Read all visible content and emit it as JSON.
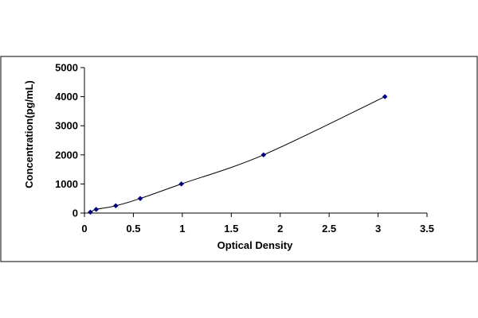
{
  "chart_data": {
    "type": "scatter",
    "title": "",
    "xlabel": "Optical Density",
    "ylabel": "Concentration(pg/mL)",
    "xlim": [
      0,
      3.5
    ],
    "ylim": [
      0,
      5000
    ],
    "x_ticks": [
      0,
      0.5,
      1,
      1.5,
      2,
      2.5,
      3,
      3.5
    ],
    "x_tick_labels": [
      "0",
      "0.5",
      "1",
      "1.5",
      "2",
      "2.5",
      "3",
      "3.5"
    ],
    "y_ticks": [
      0,
      1000,
      2000,
      3000,
      4000,
      5000
    ],
    "y_tick_labels": [
      "0",
      "1000",
      "2000",
      "3000",
      "4000",
      "5000"
    ],
    "grid": false,
    "legend": "none",
    "series": [
      {
        "x": [
          0.06,
          0.12,
          0.32,
          0.57,
          0.99,
          1.83,
          3.07
        ],
        "y": [
          31,
          125,
          250,
          500,
          1000,
          2000,
          4000
        ],
        "color": "#000080",
        "marker": "diamond",
        "smooth_line": true
      }
    ]
  }
}
